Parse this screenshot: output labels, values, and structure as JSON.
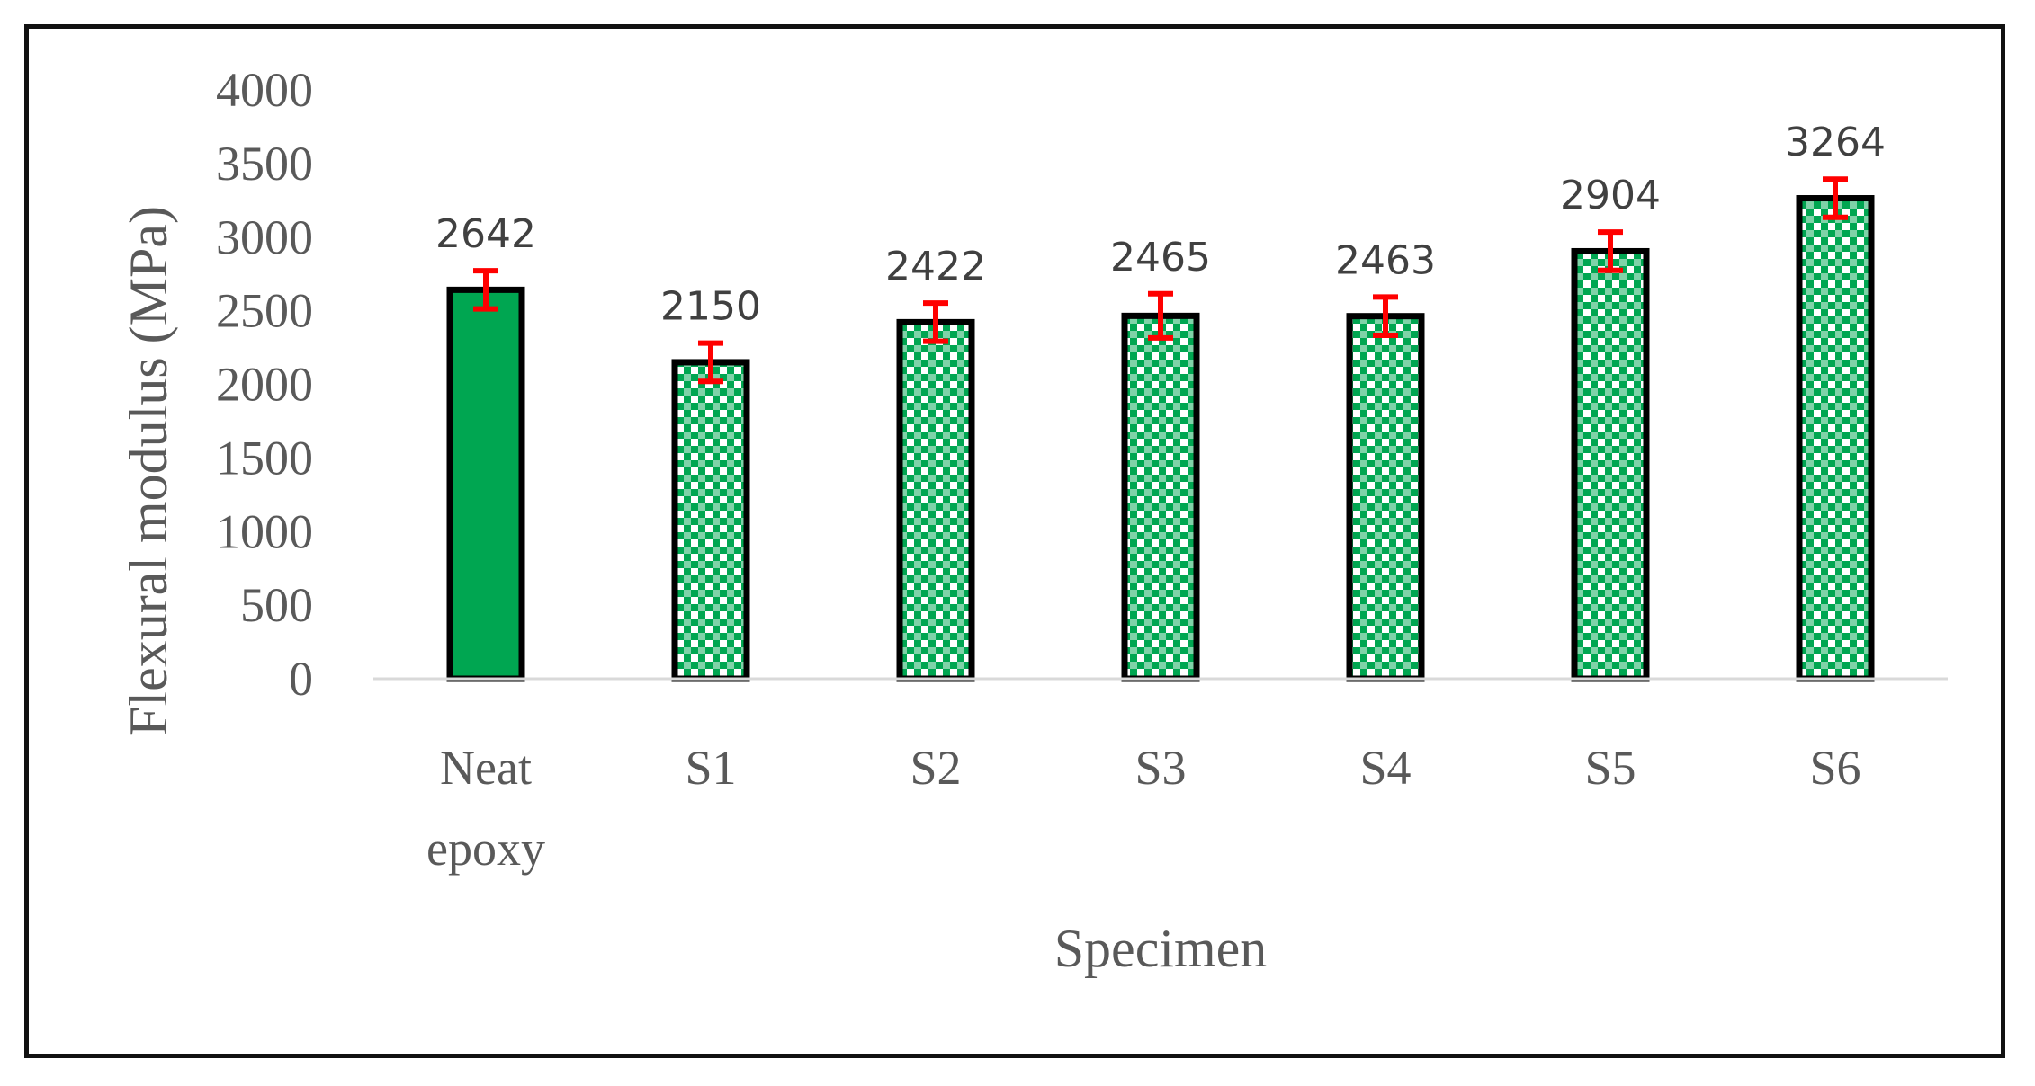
{
  "chart_data": {
    "type": "bar",
    "title": "",
    "xlabel": "Specimen",
    "ylabel": "Flexural modulus (MPa)",
    "ylim": [
      0,
      4000
    ],
    "yticks": [
      0,
      500,
      1000,
      1500,
      2000,
      2500,
      3000,
      3500,
      4000
    ],
    "categories": [
      [
        "Neat",
        "epoxy"
      ],
      [
        "S1"
      ],
      [
        "S2"
      ],
      [
        "S3"
      ],
      [
        "S4"
      ],
      [
        "S5"
      ],
      [
        "S6"
      ]
    ],
    "values": [
      2642,
      2150,
      2422,
      2465,
      2463,
      2904,
      3264
    ],
    "errors": [
      130,
      130,
      130,
      150,
      130,
      130,
      130
    ],
    "fill_styles": [
      "solid",
      "checkered",
      "checkered",
      "checkered",
      "checkered",
      "checkered",
      "checkered"
    ],
    "grid": false,
    "legend": "none",
    "colors": {
      "bar_fill": "#00a651",
      "bar_outline": "#000000",
      "error_bar": "#ff0000",
      "axis_line": "#d9d9d9",
      "text": "#595959"
    }
  }
}
